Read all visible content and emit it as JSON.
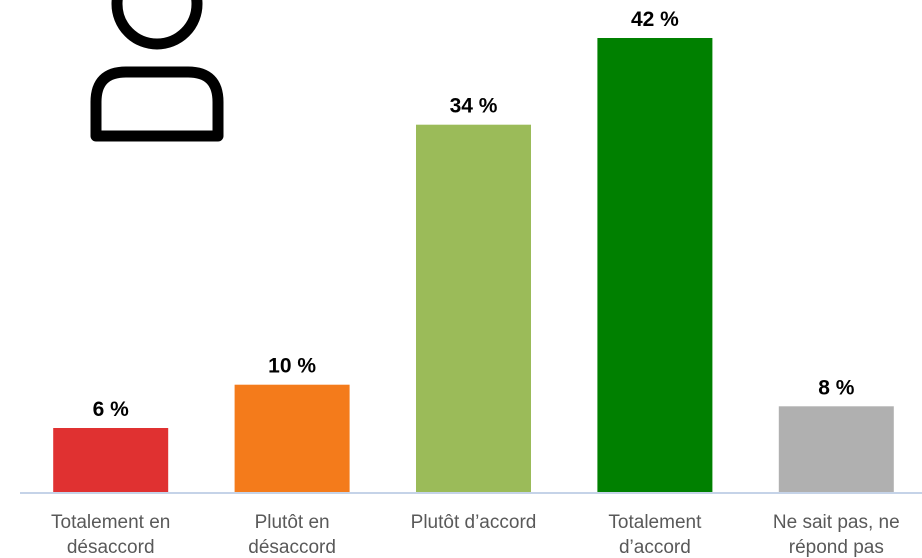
{
  "chart_data": {
    "type": "bar",
    "categories": [
      [
        "Totalement en",
        "désaccord"
      ],
      [
        "Plutôt en",
        "désaccord"
      ],
      [
        "Plutôt d’accord"
      ],
      [
        "Totalement",
        "d’accord"
      ],
      [
        "Ne sait pas, ne",
        "répond pas"
      ]
    ],
    "values": [
      6,
      10,
      34,
      42,
      8
    ],
    "value_labels": [
      "6 %",
      "10 %",
      "34 %",
      "42 %",
      "8 %"
    ],
    "colors": [
      "#e03131",
      "#f47b1b",
      "#9bbb59",
      "#008000",
      "#b0b0b0"
    ],
    "ylim": [
      0,
      42
    ],
    "grid": false,
    "legend": "none",
    "unit": "%"
  },
  "decoration": {
    "icon": "person-icon",
    "icon_color": "#000000",
    "axis_color": "#c5d3e8"
  }
}
